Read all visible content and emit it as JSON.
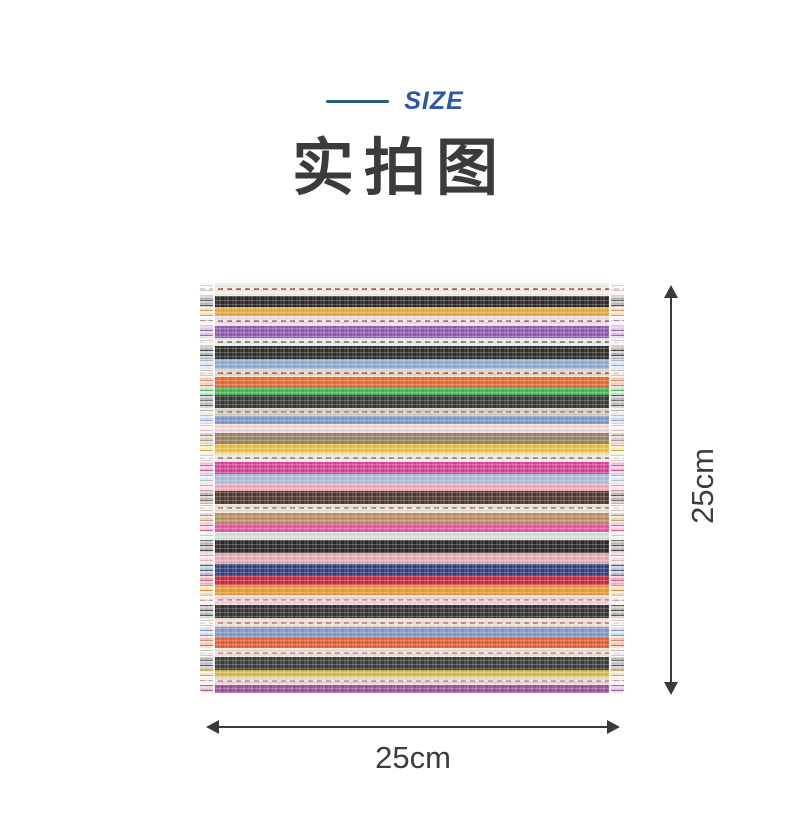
{
  "size_header": {
    "label": "SIZE",
    "text_color": "#2d56a9",
    "line_color": "#25607a"
  },
  "title": {
    "text": "实拍图",
    "color": "#3b3b3b"
  },
  "towel": {
    "stripes": [
      {
        "color": "#f1ede6",
        "h": 13,
        "pin": "#b05050"
      },
      {
        "color": "#2b2a28",
        "h": 11
      },
      {
        "color": "#e6a83c",
        "h": 9
      },
      {
        "color": "#efdfe0",
        "h": 10,
        "pin": "#9a6aa0"
      },
      {
        "color": "#9059b5",
        "h": 12
      },
      {
        "color": "#e9e6e2",
        "h": 8,
        "pin": "#8a8a8a"
      },
      {
        "color": "#2e2c2a",
        "h": 13
      },
      {
        "color": "#8fabd3",
        "h": 10
      },
      {
        "color": "#e3d9c6",
        "h": 8,
        "pin": "#c05050"
      },
      {
        "color": "#e76a2f",
        "h": 11
      },
      {
        "color": "#44b854",
        "h": 8
      },
      {
        "color": "#3b3936",
        "h": 13
      },
      {
        "color": "#d9cfbc",
        "h": 8,
        "pin": "#8a8a8a"
      },
      {
        "color": "#7e97c9",
        "h": 8
      },
      {
        "color": "#f0d9da",
        "h": 9
      },
      {
        "color": "#9b7f64",
        "h": 11
      },
      {
        "color": "#e6c13e",
        "h": 9
      },
      {
        "color": "#ece4d6",
        "h": 9,
        "pin": "#9a9a9a"
      },
      {
        "color": "#dd3f9a",
        "h": 12
      },
      {
        "color": "#a9bddb",
        "h": 9
      },
      {
        "color": "#f2a9bd",
        "h": 8
      },
      {
        "color": "#4e382b",
        "h": 13
      },
      {
        "color": "#e9e1d3",
        "h": 9,
        "pin": "#b08080"
      },
      {
        "color": "#bf8f60",
        "h": 10
      },
      {
        "color": "#e5559f",
        "h": 9
      },
      {
        "color": "#d3e2da",
        "h": 8
      },
      {
        "color": "#2c2a28",
        "h": 13
      },
      {
        "color": "#e7aab2",
        "h": 11
      },
      {
        "color": "#32417a",
        "h": 11
      },
      {
        "color": "#c82540",
        "h": 10
      },
      {
        "color": "#e69b2f",
        "h": 10
      },
      {
        "color": "#ebd5d6",
        "h": 10,
        "pin": "#c888a0"
      },
      {
        "color": "#343231",
        "h": 14
      },
      {
        "color": "#e8e1d3",
        "h": 9,
        "pin": "#cc8899"
      },
      {
        "color": "#8396cb",
        "h": 11
      },
      {
        "color": "#e55c30",
        "h": 10
      },
      {
        "color": "#e7e1d5",
        "h": 9,
        "pin": "#cc8899"
      },
      {
        "color": "#3d3b39",
        "h": 13
      },
      {
        "color": "#d5b94e",
        "h": 7
      },
      {
        "color": "#ead8d3",
        "h": 8,
        "pin": "#bb88aa"
      },
      {
        "color": "#9b519c",
        "h": 8
      }
    ]
  },
  "dimensions": {
    "height_label": "25cm",
    "width_label": "25cm",
    "arrow_color": "#3a3a3a",
    "label_color": "#3d3d3d"
  }
}
